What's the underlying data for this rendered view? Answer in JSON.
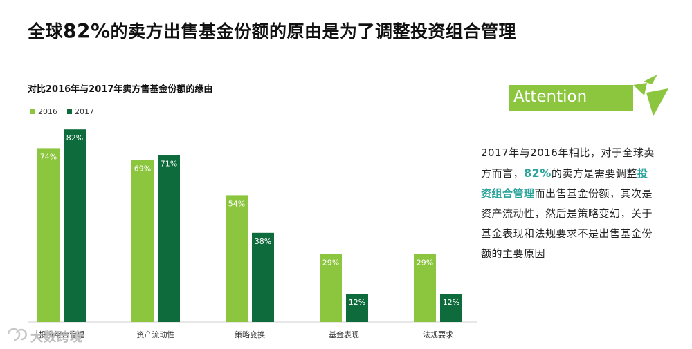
{
  "page": {
    "title_prefix": "全球",
    "title_highlight": "82%",
    "title_suffix": "的卖方出售基金份额的原由是为了调整投资组合管理"
  },
  "attention": {
    "label": "Attention"
  },
  "note": {
    "part1": "2017年与2016年相比，对于全球卖方而言，",
    "pct": "82%",
    "part2": "的卖方是需要调整",
    "highlight": "投资组合管理",
    "part3": "而出售基金份额，其次是资产流动性，然后是策略变幻，关于基金表现和法规要求不是出售基金份额的主要原因"
  },
  "watermark": {
    "text": "大数跨境"
  },
  "colors": {
    "series_2016": "#8cc63f",
    "series_2017": "#0e6b3c",
    "accent": "#2aa39a"
  },
  "chart_data": {
    "type": "bar",
    "title": "对比2016年与2017年卖方售基金份额的缘由",
    "categories": [
      "投资组合管理",
      "资产流动性",
      "策略变换",
      "基金表现",
      "法规要求"
    ],
    "series": [
      {
        "name": "2016",
        "values": [
          74,
          69,
          54,
          29,
          29
        ],
        "labels": [
          "74%",
          "69%",
          "54%",
          "29%",
          "29%"
        ]
      },
      {
        "name": "2017",
        "values": [
          82,
          71,
          38,
          12,
          12
        ],
        "labels": [
          "82%",
          "71%",
          "38%",
          "12%",
          "12%"
        ]
      }
    ],
    "ylim": [
      0,
      100
    ],
    "xlabel": "",
    "ylabel": "",
    "grid": false,
    "legend": "top-left"
  }
}
